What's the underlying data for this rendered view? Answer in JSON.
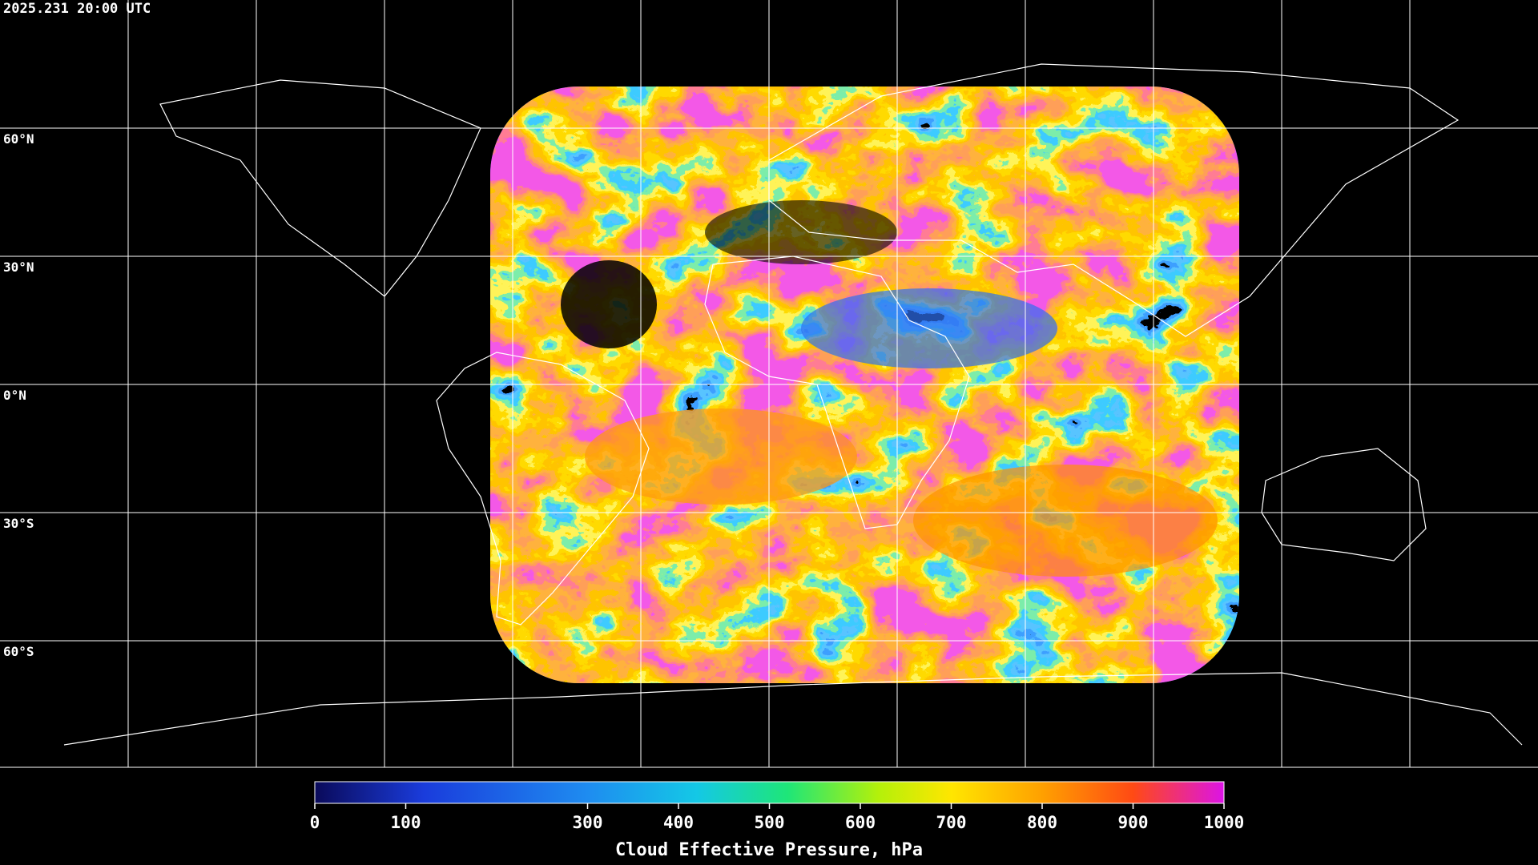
{
  "timestamp": "2025.231 20:00 UTC",
  "map": {
    "latitude_labels": [
      "60°N",
      "30°N",
      "0°N",
      "30°S",
      "60°S"
    ]
  },
  "colorbar": {
    "title": "Cloud Effective Pressure, hPa",
    "range": [
      0,
      1000
    ],
    "ticks": [
      0,
      100,
      300,
      400,
      500,
      600,
      700,
      800,
      900,
      1000
    ]
  }
}
